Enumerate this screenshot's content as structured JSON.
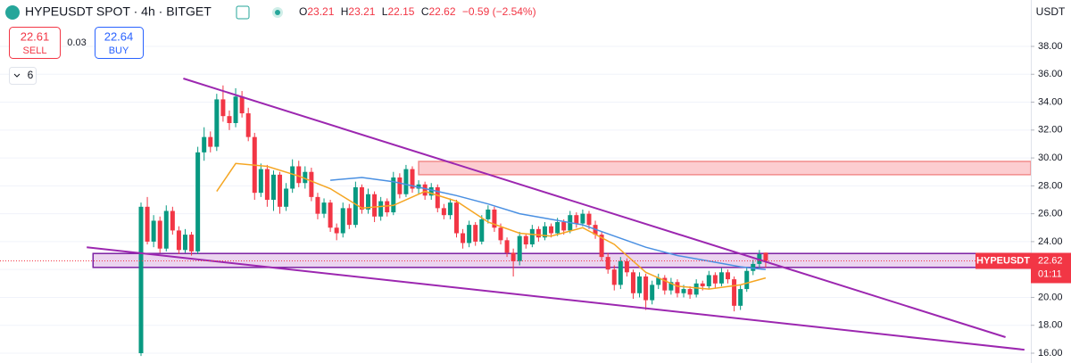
{
  "header": {
    "symbol": "HYPEUSDT SPOT · 4h · BITGET",
    "open_label": "O",
    "open": "23.21",
    "high_label": "H",
    "high": "23.21",
    "low_label": "L",
    "low": "22.15",
    "close_label": "C",
    "close": "22.62",
    "change": "−0.59 (−2.54%)"
  },
  "trade": {
    "sell_price": "22.61",
    "sell": "SELL",
    "spread": "0.03",
    "buy_price": "22.64",
    "buy": "BUY",
    "indicators": "6"
  },
  "chart_data": {
    "type": "candlestick",
    "currency": "USDT",
    "symbol_tag": "HYPEUSDT",
    "countdown": "01:11",
    "up_color": "#089981",
    "down_color": "#f23645",
    "ylim": [
      16,
      38
    ],
    "yticks": [
      {
        "value": 16,
        "label": "16.00"
      },
      {
        "value": 18,
        "label": "18.00"
      },
      {
        "value": 20,
        "label": "20.00"
      },
      {
        "value": 22,
        "label": "22.00"
      },
      {
        "value": 24,
        "label": "24.00"
      },
      {
        "value": 26,
        "label": "26.00"
      },
      {
        "value": 28,
        "label": "28.00"
      },
      {
        "value": 30,
        "label": "30.00"
      },
      {
        "value": 32,
        "label": "32.00"
      },
      {
        "value": 34,
        "label": "34.00"
      },
      {
        "value": 36,
        "label": "36.00"
      },
      {
        "value": 38,
        "label": "38.00"
      }
    ],
    "grid": true,
    "candles": [
      [
        16.0,
        26.8,
        15.8,
        26.5
      ],
      [
        26.5,
        27.2,
        23.8,
        24.0
      ],
      [
        24.0,
        25.9,
        23.6,
        25.5
      ],
      [
        25.5,
        25.8,
        23.2,
        23.5
      ],
      [
        23.5,
        26.6,
        23.3,
        26.2
      ],
      [
        26.2,
        26.5,
        24.5,
        24.8
      ],
      [
        24.8,
        25.1,
        23.1,
        23.4
      ],
      [
        23.4,
        24.9,
        23.2,
        24.5
      ],
      [
        24.5,
        24.7,
        23.0,
        23.3
      ],
      [
        23.3,
        30.8,
        23.1,
        30.4
      ],
      [
        30.4,
        32.2,
        29.8,
        31.5
      ],
      [
        31.5,
        31.9,
        30.4,
        30.8
      ],
      [
        30.8,
        34.6,
        30.5,
        34.2
      ],
      [
        34.2,
        35.2,
        32.6,
        33.0
      ],
      [
        33.0,
        33.4,
        32.0,
        32.5
      ],
      [
        32.5,
        35.0,
        32.2,
        34.4
      ],
      [
        34.4,
        34.8,
        32.9,
        33.2
      ],
      [
        33.2,
        33.6,
        31.2,
        31.5
      ],
      [
        31.5,
        31.8,
        27.0,
        27.5
      ],
      [
        27.5,
        29.6,
        27.2,
        29.2
      ],
      [
        29.2,
        29.5,
        26.5,
        27.0
      ],
      [
        27.0,
        29.1,
        26.2,
        28.8
      ],
      [
        28.8,
        29.0,
        26.0,
        26.5
      ],
      [
        26.5,
        28.2,
        26.2,
        27.8
      ],
      [
        27.8,
        29.9,
        27.5,
        29.4
      ],
      [
        29.4,
        29.8,
        27.9,
        28.2
      ],
      [
        28.2,
        29.4,
        27.8,
        29.0
      ],
      [
        29.0,
        29.3,
        26.9,
        27.2
      ],
      [
        27.2,
        27.5,
        25.6,
        26.0
      ],
      [
        26.0,
        27.1,
        25.7,
        26.8
      ],
      [
        26.8,
        27.0,
        24.7,
        25.0
      ],
      [
        25.0,
        25.3,
        24.1,
        24.6
      ],
      [
        24.6,
        26.8,
        24.3,
        26.4
      ],
      [
        26.4,
        26.7,
        24.9,
        25.2
      ],
      [
        25.2,
        28.3,
        25.0,
        27.9
      ],
      [
        27.9,
        28.1,
        26.0,
        26.3
      ],
      [
        26.3,
        27.8,
        26.0,
        27.4
      ],
      [
        27.4,
        27.6,
        25.4,
        25.8
      ],
      [
        25.8,
        27.2,
        25.5,
        26.9
      ],
      [
        26.9,
        27.1,
        25.8,
        26.1
      ],
      [
        26.1,
        29.0,
        25.9,
        28.6
      ],
      [
        28.6,
        28.9,
        27.1,
        27.4
      ],
      [
        27.4,
        29.5,
        27.2,
        29.2
      ],
      [
        29.2,
        29.4,
        27.5,
        27.8
      ],
      [
        27.8,
        28.4,
        27.4,
        28.1
      ],
      [
        28.1,
        28.3,
        27.0,
        27.3
      ],
      [
        27.3,
        28.2,
        27.0,
        27.9
      ],
      [
        27.9,
        28.1,
        26.1,
        26.4
      ],
      [
        26.4,
        26.7,
        25.6,
        25.9
      ],
      [
        25.9,
        27.1,
        25.6,
        26.8
      ],
      [
        26.8,
        27.0,
        24.3,
        24.6
      ],
      [
        24.6,
        24.9,
        23.5,
        23.9
      ],
      [
        23.9,
        25.5,
        23.6,
        25.2
      ],
      [
        25.2,
        25.4,
        23.7,
        24.0
      ],
      [
        24.0,
        25.9,
        23.8,
        25.6
      ],
      [
        25.6,
        26.6,
        25.3,
        26.3
      ],
      [
        26.3,
        26.5,
        24.7,
        25.0
      ],
      [
        25.0,
        25.3,
        23.8,
        24.1
      ],
      [
        24.1,
        24.3,
        22.9,
        23.2
      ],
      [
        23.2,
        23.5,
        21.5,
        22.6
      ],
      [
        22.6,
        24.7,
        22.3,
        24.4
      ],
      [
        24.4,
        24.6,
        23.5,
        23.8
      ],
      [
        23.8,
        25.2,
        23.6,
        24.9
      ],
      [
        24.9,
        25.1,
        24.0,
        24.3
      ],
      [
        24.3,
        25.4,
        24.1,
        25.1
      ],
      [
        25.1,
        25.3,
        24.3,
        24.6
      ],
      [
        24.6,
        25.7,
        24.4,
        25.4
      ],
      [
        25.4,
        25.6,
        24.5,
        24.8
      ],
      [
        24.8,
        26.2,
        24.6,
        25.9
      ],
      [
        25.9,
        26.1,
        25.0,
        25.3
      ],
      [
        25.3,
        26.3,
        25.1,
        26.0
      ],
      [
        26.0,
        26.2,
        24.9,
        25.2
      ],
      [
        25.2,
        25.5,
        24.2,
        24.5
      ],
      [
        24.5,
        24.7,
        22.6,
        22.9
      ],
      [
        22.9,
        23.2,
        21.7,
        22.0
      ],
      [
        22.0,
        22.3,
        20.5,
        20.9
      ],
      [
        20.9,
        22.9,
        20.6,
        22.6
      ],
      [
        22.6,
        22.8,
        21.5,
        21.8
      ],
      [
        21.8,
        22.0,
        19.9,
        20.3
      ],
      [
        20.3,
        21.8,
        20.0,
        21.5
      ],
      [
        21.5,
        21.7,
        19.1,
        19.8
      ],
      [
        19.8,
        21.2,
        19.5,
        20.9
      ],
      [
        20.9,
        21.7,
        20.6,
        21.4
      ],
      [
        21.4,
        21.6,
        20.2,
        20.5
      ],
      [
        20.5,
        21.4,
        20.2,
        21.1
      ],
      [
        21.1,
        21.3,
        20.0,
        20.3
      ],
      [
        20.3,
        20.9,
        20.0,
        20.6
      ],
      [
        20.6,
        20.8,
        19.9,
        20.2
      ],
      [
        20.2,
        21.3,
        20.0,
        21.0
      ],
      [
        21.0,
        21.2,
        20.5,
        20.8
      ],
      [
        20.8,
        21.9,
        20.6,
        21.6
      ],
      [
        21.6,
        21.8,
        20.7,
        21.0
      ],
      [
        21.0,
        22.1,
        20.8,
        21.8
      ],
      [
        21.8,
        22.0,
        21.0,
        21.3
      ],
      [
        21.3,
        21.5,
        19.0,
        19.4
      ],
      [
        19.4,
        20.9,
        19.1,
        20.6
      ],
      [
        20.6,
        22.2,
        20.4,
        21.9
      ],
      [
        21.9,
        22.7,
        21.6,
        22.4
      ],
      [
        22.4,
        23.4,
        22.1,
        23.1
      ],
      [
        23.21,
        23.21,
        22.15,
        22.62
      ]
    ],
    "moving_averages": [
      {
        "color": "#f5a623",
        "x": [
          12,
          15,
          20,
          25,
          30,
          35,
          40,
          45,
          50,
          55,
          60,
          65,
          70,
          75,
          80,
          85,
          90,
          95,
          99
        ],
        "values": [
          27.6,
          29.6,
          29.4,
          28.7,
          27.8,
          26.4,
          26.6,
          27.6,
          26.9,
          25.4,
          24.6,
          24.4,
          25.0,
          23.8,
          21.8,
          20.8,
          20.6,
          20.9,
          21.4
        ]
      },
      {
        "color": "#4a90e2",
        "x": [
          30,
          35,
          40,
          45,
          50,
          55,
          60,
          65,
          70,
          75,
          80,
          85,
          90,
          95,
          99
        ],
        "values": [
          28.4,
          28.6,
          28.3,
          27.8,
          27.3,
          26.7,
          26.0,
          25.6,
          25.2,
          24.4,
          23.6,
          23.0,
          22.6,
          22.2,
          22.0
        ]
      }
    ],
    "trendlines": [
      {
        "color": "#9c27b0",
        "x": [
          6.7,
          137
        ],
        "values": [
          35.7,
          17.15
        ]
      },
      {
        "color": "#9c27b0",
        "x": [
          -8.6,
          140
        ],
        "values": [
          23.6,
          16.25
        ]
      }
    ],
    "zones": [
      {
        "start": 44,
        "top": 29.75,
        "bottom": 28.8,
        "fill": "rgba(242,54,69,0.25)",
        "stroke": "#f28b8b"
      },
      {
        "start": -7.6,
        "top": 23.15,
        "bottom": 22.15,
        "fill": "rgba(156,39,176,0.2)",
        "stroke": "#7b1fa2"
      }
    ]
  }
}
